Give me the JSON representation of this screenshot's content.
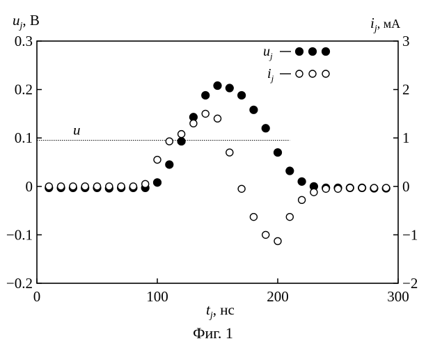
{
  "chart_data": {
    "type": "scatter",
    "caption": "Фиг. 1",
    "xlabel": {
      "main": "t",
      "sub": "j",
      "unit": ", нс"
    },
    "ylabel_left": {
      "main": "u",
      "sub": "j",
      "unit": ", В"
    },
    "ylabel_right": {
      "main": "i",
      "sub": "j",
      "unit": ", мА"
    },
    "xlim": [
      0,
      300
    ],
    "ylim_left": [
      -0.2,
      0.3
    ],
    "ylim_right": [
      -2,
      3
    ],
    "x_ticks": [
      0,
      100,
      200,
      300
    ],
    "x_tick_labels": [
      "0",
      "100",
      "200",
      "300"
    ],
    "y_left_ticks": [
      -0.2,
      -0.1,
      0,
      0.1,
      0.2,
      0.3
    ],
    "y_left_tick_labels": [
      "−0.2",
      "−0.1",
      "0",
      "0.1",
      "0.2",
      "0.3"
    ],
    "y_right_ticks": [
      -2,
      -1,
      0,
      1,
      2,
      3
    ],
    "y_right_tick_labels": [
      "−2",
      "−1",
      "0",
      "1",
      "2",
      "3"
    ],
    "grid": false,
    "legend_position": "top-right",
    "reference_line": {
      "label": "u",
      "y": 0.095,
      "x_start": 0,
      "x_end": 210
    },
    "series": [
      {
        "name": "u_j",
        "legend_main": "u",
        "legend_sub": "j",
        "axis": "left",
        "marker": "filled-circle",
        "x": [
          10,
          20,
          30,
          40,
          50,
          60,
          70,
          80,
          90,
          100,
          110,
          120,
          130,
          140,
          150,
          160,
          170,
          180,
          190,
          200,
          210,
          220,
          230,
          240,
          250,
          260,
          270,
          280,
          290
        ],
        "y": [
          -0.003,
          -0.003,
          -0.003,
          -0.003,
          -0.003,
          -0.004,
          -0.003,
          -0.003,
          -0.003,
          0.008,
          0.045,
          0.093,
          0.143,
          0.188,
          0.208,
          0.203,
          0.188,
          0.158,
          0.12,
          0.07,
          0.032,
          0.01,
          0.0,
          -0.003,
          -0.003,
          -0.003,
          -0.003,
          -0.004,
          -0.004
        ]
      },
      {
        "name": "i_j",
        "legend_main": "i",
        "legend_sub": "j",
        "axis": "right",
        "marker": "open-circle",
        "x": [
          10,
          20,
          30,
          40,
          50,
          60,
          70,
          80,
          90,
          100,
          110,
          120,
          130,
          140,
          150,
          160,
          170,
          180,
          190,
          200,
          210,
          220,
          230,
          240,
          250,
          260,
          270,
          280,
          290
        ],
        "y": [
          0.0,
          0.0,
          0.0,
          0.0,
          0.0,
          0.0,
          0.0,
          0.0,
          0.05,
          0.55,
          0.93,
          1.08,
          1.3,
          1.5,
          1.4,
          0.7,
          -0.05,
          -0.63,
          -1.0,
          -1.13,
          -0.63,
          -0.28,
          -0.12,
          -0.05,
          -0.05,
          -0.03,
          -0.03,
          -0.03,
          -0.03
        ]
      }
    ]
  }
}
